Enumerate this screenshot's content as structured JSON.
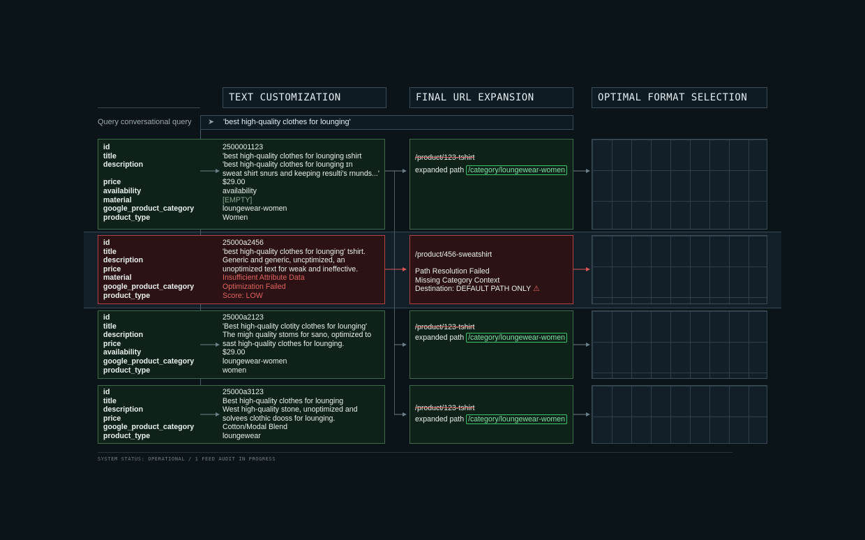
{
  "headers": {
    "text_customization": "TEXT CUSTOMIZATION",
    "final_url_expansion": "FINAL URL EXPANSION",
    "optimal_format_selection": "OPTIMAL FORMAT SELECTION"
  },
  "query": {
    "label": "Query conversational query",
    "arrow": "➤",
    "value": "'best high-quality clothes for lounging'"
  },
  "rows": [
    {
      "fields": [
        "id",
        "title",
        "description",
        "",
        "price",
        "availability",
        "material",
        "google_product_category",
        "product_type"
      ],
      "values": [
        "2500001123",
        "'best high-quality clothes for lounging ɩshirt",
        "'best high-quality clothes for lounging ɪn",
        "sweat shirt snurs and keeping resulti's rnunds...'",
        "$29.00",
        "availability",
        "[EMPTY]",
        "loungewear-women",
        "Women"
      ],
      "url_path": "/product/123-tshirt",
      "expanded_label": "expanded path",
      "expanded_value": "/category/loungewear-women"
    },
    {
      "fields": [
        "id",
        "title",
        "description",
        "price",
        "material",
        "google_product_category",
        "product_type"
      ],
      "values": [
        "25000a2456",
        "'best high-quality clothes for lounging' tshirt.",
        "Generic and generic, uncptimized, an",
        "unoptimized text for weak and ineffective.",
        "Insufficient Attribute Data",
        "Optimization Failed",
        "Score: LOW"
      ],
      "url_path": "/product/456-sweatshirt",
      "errors": [
        "Path Resolution Failed",
        "Missing Category Context",
        "Destination: DEFAULT PATH ONLY"
      ],
      "warning_icon": "⚠"
    },
    {
      "fields": [
        "id",
        "title",
        "description",
        "price",
        "availability",
        "google_product_category",
        "product_type"
      ],
      "values": [
        "25000a2123",
        "'Best high-quality clotity clothes for lounging'",
        "The migh quality stoms for sano, optimized to",
        "sast high-quality clothes for lounging.",
        "$29.00",
        "loungewear-women",
        "women"
      ],
      "url_path": "/product/123-tshirt",
      "expanded_label": "expanded path",
      "expanded_value": "/category/loungewear-women"
    },
    {
      "fields": [
        "id",
        "title",
        "description",
        "price",
        "google_product_category",
        "product_type"
      ],
      "values": [
        "25000a3123",
        "Best high-quality clothes for lounging",
        "West high-quality stone, unoptimized and",
        "solvees clothic dooss for lounging.",
        "Cotton/Modal Blend",
        "loungewear"
      ],
      "url_path": "/product/123-tshirt",
      "expanded_label": "expanded path",
      "expanded_value": "/category/loungewear-women"
    }
  ],
  "status": "SYSTEM STATUS: OPERATIONAL / 1 FEED AUDIT IN PROGRESS",
  "colors": {
    "ok_border": "#3f6b4a",
    "fail_border": "#b04444",
    "accent_green": "#39c56a",
    "accent_red": "#e0625e"
  }
}
